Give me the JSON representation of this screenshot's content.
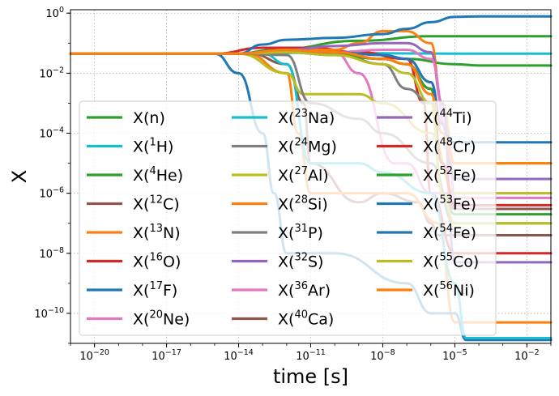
{
  "chart_data": {
    "type": "line",
    "xlabel": "time [s]",
    "ylabel": "X",
    "xscale": "log",
    "yscale": "log",
    "xlim": [
      1e-21,
      0.1
    ],
    "ylim": [
      1e-11,
      1.3
    ],
    "grid": true,
    "legend_position": "lower-left",
    "legend_columns": 3,
    "x_ticks": [
      {
        "value": 1e-20,
        "base": "10",
        "exp": "−20"
      },
      {
        "value": 1e-17,
        "base": "10",
        "exp": "−17"
      },
      {
        "value": 1e-14,
        "base": "10",
        "exp": "−14"
      },
      {
        "value": 1e-11,
        "base": "10",
        "exp": "−11"
      },
      {
        "value": 1e-08,
        "base": "10",
        "exp": "−8"
      },
      {
        "value": 1e-05,
        "base": "10",
        "exp": "−5"
      },
      {
        "value": 0.01,
        "base": "10",
        "exp": "−2"
      }
    ],
    "y_ticks": [
      {
        "value": 1,
        "base": "10",
        "exp": "0"
      },
      {
        "value": 0.01,
        "base": "10",
        "exp": "−2"
      },
      {
        "value": 0.0001,
        "base": "10",
        "exp": "−4"
      },
      {
        "value": 1e-06,
        "base": "10",
        "exp": "−6"
      },
      {
        "value": 1e-08,
        "base": "10",
        "exp": "−8"
      },
      {
        "value": 1e-10,
        "base": "10",
        "exp": "−10"
      }
    ],
    "series": [
      {
        "label_pre": "X(n)",
        "sup": "",
        "label_post": "",
        "color": "#2ca02c",
        "x": [
          1e-21,
          1e-14,
          3e-13,
          1e-09,
          1e-06,
          1e-05,
          0.0001,
          0.1
        ],
        "y": [
          0.045,
          0.045,
          0.06,
          0.12,
          0.17,
          0.17,
          0.17,
          0.17
        ]
      },
      {
        "label_pre": "X(",
        "sup": "1",
        "label_post": "H)",
        "color": "#17becf",
        "x": [
          1e-21,
          1e-14,
          1e-11,
          1e-08,
          1e-05,
          0.1
        ],
        "y": [
          0.045,
          0.045,
          0.048,
          0.046,
          0.045,
          0.045
        ]
      },
      {
        "label_pre": "X(",
        "sup": "4",
        "label_post": "He)",
        "color": "#2ca02c",
        "x": [
          1e-21,
          1e-14,
          1e-12,
          1e-09,
          1e-07,
          1e-05,
          0.0001,
          0.1
        ],
        "y": [
          0.045,
          0.045,
          0.05,
          0.05,
          0.03,
          0.02,
          0.018,
          0.018
        ]
      },
      {
        "label_pre": "X(",
        "sup": "12",
        "label_post": "C)",
        "color": "#8c564b",
        "x": [
          1e-21,
          3e-14,
          1e-12,
          5e-12,
          1e-11,
          1e-09,
          1e-08,
          3e-07,
          1e-06,
          2e-06,
          0.0001,
          0.1
        ],
        "y": [
          0.045,
          0.045,
          0.02,
          0.001,
          1e-05,
          5e-07,
          1e-06,
          5e-07,
          1e-07,
          4e-08,
          4e-08,
          4e-08
        ]
      },
      {
        "label_pre": "X(",
        "sup": "13",
        "label_post": "N)",
        "color": "#ff7f0e",
        "x": [
          1e-21,
          2e-14,
          1e-12,
          3e-12,
          1e-11,
          1e-09,
          1e-07,
          2e-06,
          1e-05,
          0.1
        ],
        "y": [
          0.045,
          0.045,
          0.01,
          0.0001,
          1e-06,
          1e-06,
          1e-06,
          1e-07,
          5e-11,
          5e-11
        ]
      },
      {
        "label_pre": "X(",
        "sup": "16",
        "label_post": "O)",
        "color": "#d62728",
        "x": [
          1e-21,
          1e-15,
          1e-13,
          1e-11,
          1e-09,
          1e-07,
          5e-07,
          1e-06,
          1e-05,
          0.1
        ],
        "y": [
          0.045,
          0.045,
          0.07,
          0.07,
          0.05,
          0.03,
          0.001,
          1e-06,
          1e-08,
          1e-08
        ]
      },
      {
        "label_pre": "X(",
        "sup": "17",
        "label_post": "F)",
        "color": "#1f77b4",
        "x": [
          1e-21,
          1e-15,
          1e-14,
          1e-13,
          3e-13,
          1e-12,
          1e-10,
          1e-07,
          1e-06,
          1e-05,
          3e-05,
          0.1
        ],
        "y": [
          0.045,
          0.045,
          0.01,
          0.0001,
          1e-06,
          1e-08,
          1e-08,
          1e-09,
          1e-10,
          1e-10,
          1.3e-11,
          1.3e-11
        ]
      },
      {
        "label_pre": "X(",
        "sup": "20",
        "label_post": "Ne)",
        "color": "#e377c2",
        "x": [
          1e-21,
          1e-14,
          1e-12,
          1e-10,
          1e-09,
          3e-08,
          1e-07,
          1e-06,
          1e-05,
          0.1
        ],
        "y": [
          0.045,
          0.045,
          0.06,
          0.05,
          0.01,
          1e-05,
          1e-05,
          1e-06,
          1e-06,
          1e-06
        ]
      },
      {
        "label_pre": "X(",
        "sup": "23",
        "label_post": "Na)",
        "color": "#17becf",
        "x": [
          1e-21,
          1e-13,
          1e-12,
          1e-11,
          1e-09,
          1e-08,
          1e-06,
          1e-05,
          3e-05,
          0.1
        ],
        "y": [
          0.045,
          0.045,
          0.02,
          1e-05,
          1e-05,
          5e-06,
          1e-06,
          1e-09,
          1.5e-11,
          1.5e-11
        ]
      },
      {
        "label_pre": "X(",
        "sup": "24",
        "label_post": "Mg)",
        "color": "#7f7f7f",
        "x": [
          1e-21,
          1e-14,
          1e-12,
          1e-10,
          1e-08,
          1e-07,
          1e-06,
          3e-06,
          1e-05,
          0.1
        ],
        "y": [
          0.045,
          0.045,
          0.06,
          0.05,
          0.02,
          0.003,
          0.001,
          1e-06,
          3e-07,
          3e-07
        ]
      },
      {
        "label_pre": "X(",
        "sup": "27",
        "label_post": "Al)",
        "color": "#bcbd22",
        "x": [
          1e-21,
          1e-14,
          1e-12,
          5e-12,
          1e-10,
          1e-09,
          1e-08,
          1e-06,
          1e-05,
          0.1
        ],
        "y": [
          0.045,
          0.045,
          0.01,
          0.002,
          0.002,
          0.002,
          0.001,
          0.0001,
          1e-06,
          1e-06
        ]
      },
      {
        "label_pre": "X(",
        "sup": "28",
        "label_post": "Si)",
        "color": "#ff7f0e",
        "x": [
          1e-21,
          1e-14,
          1e-12,
          1e-10,
          1e-09,
          1e-08,
          1e-07,
          1e-06,
          3e-06,
          1e-05,
          0.1
        ],
        "y": [
          0.045,
          0.045,
          0.06,
          0.06,
          0.1,
          0.25,
          0.25,
          0.1,
          0.001,
          1e-05,
          1e-05
        ]
      },
      {
        "label_pre": "X(",
        "sup": "31",
        "label_post": "P)",
        "color": "#7f7f7f",
        "x": [
          1e-21,
          1e-14,
          1e-12,
          1e-11,
          1e-09,
          1e-08,
          1e-06,
          1e-05,
          0.1
        ],
        "y": [
          0.045,
          0.045,
          0.04,
          0.001,
          0.0003,
          0.0001,
          1e-05,
          1e-07,
          1e-07
        ]
      },
      {
        "label_pre": "X(",
        "sup": "32",
        "label_post": "S)",
        "color": "#9467bd",
        "x": [
          1e-21,
          1e-14,
          1e-12,
          1e-10,
          1e-08,
          1e-07,
          1e-06,
          3e-06,
          1e-05,
          0.1
        ],
        "y": [
          0.045,
          0.045,
          0.06,
          0.08,
          0.1,
          0.1,
          0.05,
          0.001,
          5e-09,
          5e-09
        ]
      },
      {
        "label_pre": "X(",
        "sup": "36",
        "label_post": "Ar)",
        "color": "#e377c2",
        "x": [
          1e-21,
          1e-14,
          1e-12,
          1e-10,
          1e-08,
          1e-07,
          1e-06,
          5e-06,
          1e-05,
          0.1
        ],
        "y": [
          0.045,
          0.045,
          0.05,
          0.05,
          0.06,
          0.06,
          0.03,
          0.0001,
          7e-07,
          7e-07
        ]
      },
      {
        "label_pre": "X(",
        "sup": "40",
        "label_post": "Ca)",
        "color": "#8c564b",
        "x": [
          1e-21,
          1e-14,
          1e-12,
          1e-10,
          1e-08,
          1e-07,
          1e-06,
          3e-06,
          1e-05,
          0.1
        ],
        "y": [
          0.045,
          0.045,
          0.05,
          0.04,
          0.03,
          0.02,
          0.003,
          1e-05,
          3e-07,
          3e-07
        ]
      },
      {
        "label_pre": "X(",
        "sup": "44",
        "label_post": "Ti)",
        "color": "#9467bd",
        "x": [
          1e-21,
          1e-14,
          1e-12,
          1e-10,
          1e-08,
          1e-07,
          1e-06,
          3e-06,
          1e-05,
          0.1
        ],
        "y": [
          0.045,
          0.045,
          0.05,
          0.05,
          0.04,
          0.03,
          0.005,
          0.0002,
          3e-06,
          3e-06
        ]
      },
      {
        "label_pre": "X(",
        "sup": "48",
        "label_post": "Cr)",
        "color": "#d62728",
        "x": [
          1e-21,
          1e-14,
          1e-12,
          1e-10,
          1e-08,
          1e-07,
          1e-06,
          3e-06,
          1e-05,
          0.1
        ],
        "y": [
          0.045,
          0.045,
          0.06,
          0.05,
          0.03,
          0.02,
          0.003,
          1e-05,
          4e-07,
          4e-07
        ]
      },
      {
        "label_pre": "X(",
        "sup": "52",
        "label_post": "Fe)",
        "color": "#2ca02c",
        "x": [
          1e-21,
          1e-14,
          1e-12,
          1e-10,
          1e-08,
          1e-07,
          1e-06,
          3e-06,
          1e-05,
          0.1
        ],
        "y": [
          0.045,
          0.045,
          0.05,
          0.04,
          0.03,
          0.02,
          0.003,
          1e-06,
          2e-07,
          2e-07
        ]
      },
      {
        "label_pre": "X(",
        "sup": "53",
        "label_post": "Fe)",
        "color": "#1f77b4",
        "x": [
          1e-21,
          1e-14,
          1e-12,
          1e-10,
          1e-08,
          1e-07,
          1e-06,
          3e-06,
          1e-05,
          0.1
        ],
        "y": [
          0.045,
          0.045,
          0.06,
          0.05,
          0.04,
          0.03,
          0.005,
          0.0001,
          5e-05,
          5e-05
        ]
      },
      {
        "label_pre": "X(",
        "sup": "54",
        "label_post": "Fe)",
        "color": "#1f77b4",
        "x": [
          1e-21,
          1e-14,
          1e-13,
          1e-12,
          1e-10,
          1e-08,
          1e-07,
          1e-06,
          1e-05,
          0.0001,
          0.1
        ],
        "y": [
          0.045,
          0.045,
          0.09,
          0.13,
          0.15,
          0.2,
          0.3,
          0.5,
          0.75,
          0.78,
          0.78
        ]
      },
      {
        "label_pre": "X(",
        "sup": "55",
        "label_post": "Co)",
        "color": "#bcbd22",
        "x": [
          1e-21,
          1e-14,
          1e-12,
          1e-10,
          1e-08,
          1e-07,
          1e-06,
          3e-06,
          1e-05,
          0.1
        ],
        "y": [
          0.045,
          0.045,
          0.05,
          0.04,
          0.02,
          0.01,
          0.001,
          1e-06,
          1e-07,
          1e-07
        ]
      },
      {
        "label_pre": "X(",
        "sup": "56",
        "label_post": "Ni)",
        "color": "#ff7f0e",
        "x": [
          1e-21,
          1e-14,
          1e-12,
          1e-10,
          1e-08,
          1e-07,
          1e-06,
          3e-06,
          1e-05,
          0.1
        ],
        "y": [
          0.045,
          0.045,
          0.06,
          0.05,
          0.03,
          0.02,
          0.002,
          0.0001,
          1e-05,
          1e-05
        ]
      }
    ]
  }
}
